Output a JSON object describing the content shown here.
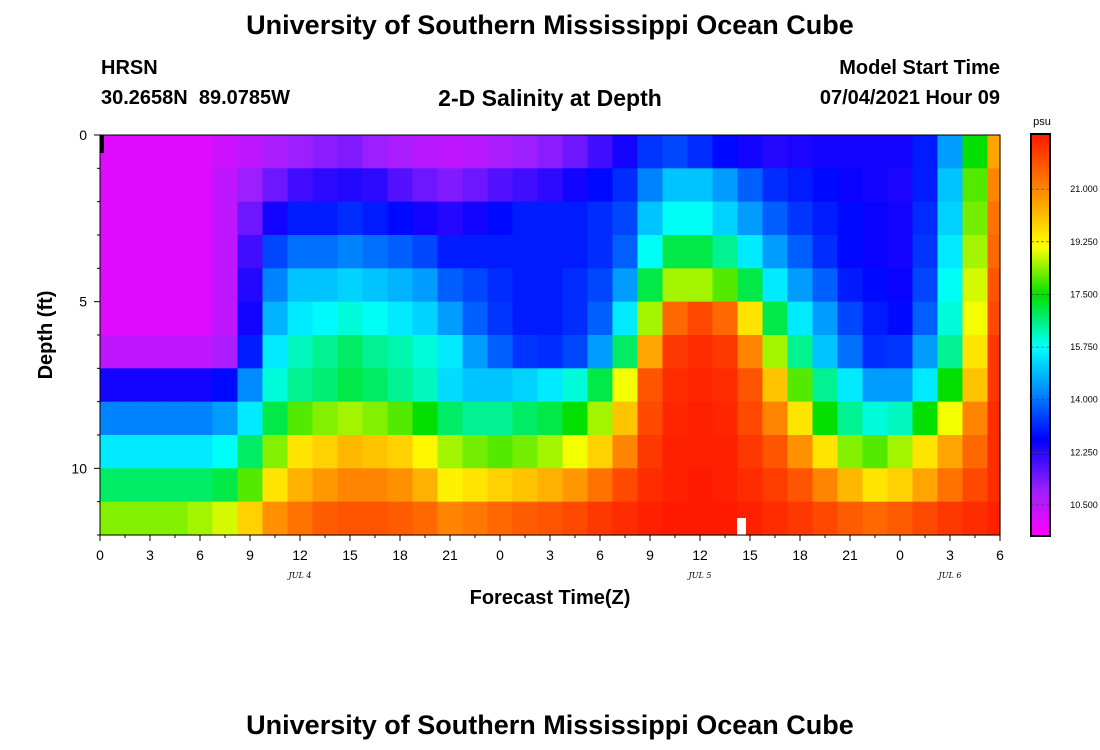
{
  "header": {
    "title": "University of Southern Mississippi Ocean Cube",
    "station": "HRSN",
    "coords": "30.2658N  89.0785W",
    "subtitle": "2-D Salinity at Depth",
    "model_label": "Model Start Time",
    "model_time": "07/04/2021 Hour 09"
  },
  "footer": {
    "title": "University of Southern Mississippi Ocean Cube"
  },
  "chart_data": {
    "type": "heatmap",
    "title": "2-D Salinity at Depth",
    "xlabel": "Forecast Time(Z)",
    "ylabel": "Depth (ft)",
    "x_hours": [
      0,
      54
    ],
    "y_depth_ft": [
      0,
      12
    ],
    "x_ticks": [
      "0",
      "3",
      "6",
      "9",
      "12",
      "15",
      "18",
      "21",
      "0",
      "3",
      "6",
      "9",
      "12",
      "15",
      "18",
      "21",
      "0",
      "3",
      "6"
    ],
    "y_ticks": [
      "0",
      "5",
      "10"
    ],
    "date_labels": [
      {
        "label": "JUL 4",
        "hour": 12
      },
      {
        "label": "JUL 5",
        "hour": 36
      },
      {
        "label": "JUL 6",
        "hour": 51
      }
    ],
    "colorbar": {
      "unit": "psu",
      "range": [
        9.5,
        22.8
      ],
      "ticks": [
        "10.500",
        "12.250",
        "14.000",
        "15.750",
        "17.500",
        "19.250",
        "21.000"
      ]
    },
    "time_hours": [
      0,
      1.5,
      3,
      4.5,
      6,
      7.5,
      9,
      10.5,
      12,
      13.5,
      15,
      16.5,
      18,
      19.5,
      21,
      22.5,
      24,
      25.5,
      27,
      28.5,
      30,
      31.5,
      33,
      34.5,
      36,
      37.5,
      39,
      40.5,
      42,
      43.5,
      45,
      46.5,
      48,
      49.5,
      51,
      52.5,
      54
    ],
    "depth_levels_ft": [
      0.5,
      1.5,
      2.5,
      3.5,
      4.5,
      5.5,
      6.5,
      7.5,
      8.5,
      9.5,
      10.5,
      11.5
    ],
    "salinity_psu": [
      [
        10.0,
        10.0,
        10.0,
        10.0,
        10.0,
        10.3,
        10.5,
        10.8,
        11.0,
        11.2,
        11.3,
        11.0,
        10.8,
        10.6,
        10.5,
        10.6,
        10.8,
        11.0,
        11.2,
        11.5,
        12.0,
        12.5,
        13.3,
        13.5,
        13.2,
        12.8,
        12.5,
        12.3,
        12.4,
        12.5,
        12.5,
        12.5,
        12.5,
        13.0,
        14.5,
        17.5,
        20.5
      ],
      [
        10.0,
        10.0,
        10.0,
        10.0,
        10.0,
        10.5,
        11.0,
        11.5,
        12.0,
        12.2,
        12.3,
        12.2,
        11.8,
        11.5,
        11.3,
        11.5,
        11.8,
        12.0,
        12.2,
        12.5,
        12.8,
        13.2,
        14.2,
        15.0,
        15.0,
        14.5,
        13.8,
        13.2,
        13.0,
        12.8,
        12.6,
        12.5,
        12.4,
        13.0,
        15.0,
        18.0,
        21.0
      ],
      [
        10.0,
        10.0,
        10.0,
        10.0,
        10.0,
        10.5,
        11.5,
        12.5,
        13.0,
        13.0,
        13.2,
        13.0,
        12.8,
        12.5,
        12.3,
        12.5,
        12.8,
        13.0,
        13.0,
        13.0,
        13.2,
        13.5,
        15.0,
        15.8,
        15.8,
        15.2,
        14.5,
        13.8,
        13.3,
        13.0,
        12.8,
        12.6,
        12.5,
        13.2,
        15.2,
        18.2,
        21.3
      ],
      [
        10.0,
        10.0,
        10.0,
        10.0,
        10.0,
        10.5,
        12.0,
        13.5,
        14.0,
        14.0,
        14.2,
        14.0,
        13.8,
        13.5,
        13.0,
        13.0,
        13.0,
        13.0,
        13.0,
        13.0,
        13.2,
        13.8,
        15.8,
        17.0,
        17.0,
        16.5,
        15.5,
        14.5,
        13.8,
        13.2,
        12.8,
        12.6,
        12.5,
        13.3,
        15.5,
        18.5,
        21.5
      ],
      [
        10.0,
        10.0,
        10.0,
        10.0,
        10.0,
        10.5,
        12.3,
        14.2,
        15.0,
        15.0,
        15.2,
        15.0,
        14.8,
        14.5,
        13.8,
        13.5,
        13.2,
        13.0,
        13.0,
        13.2,
        13.5,
        14.5,
        17.0,
        18.5,
        18.5,
        18.0,
        17.0,
        15.5,
        14.5,
        13.8,
        13.0,
        12.8,
        12.6,
        13.5,
        15.8,
        18.8,
        21.8
      ],
      [
        10.0,
        10.0,
        10.0,
        10.0,
        10.0,
        10.5,
        12.5,
        14.8,
        15.5,
        15.7,
        16.0,
        15.8,
        15.5,
        15.2,
        14.5,
        13.8,
        13.3,
        13.0,
        13.0,
        13.2,
        13.8,
        15.5,
        18.5,
        21.5,
        22.0,
        21.5,
        19.5,
        17.0,
        15.5,
        14.5,
        13.5,
        13.0,
        12.8,
        13.8,
        16.0,
        19.0,
        22.0
      ],
      [
        10.5,
        10.5,
        10.5,
        10.5,
        10.5,
        10.8,
        13.0,
        15.5,
        16.2,
        16.5,
        16.8,
        16.5,
        16.3,
        16.0,
        15.5,
        14.5,
        13.8,
        13.3,
        13.2,
        13.5,
        14.5,
        16.8,
        20.5,
        22.3,
        22.5,
        22.3,
        21.0,
        18.5,
        16.5,
        15.0,
        14.0,
        13.2,
        13.3,
        14.5,
        16.5,
        19.5,
        22.3
      ],
      [
        12.5,
        12.5,
        12.5,
        12.5,
        12.5,
        12.8,
        14.3,
        16.0,
        16.5,
        16.7,
        17.0,
        16.8,
        16.5,
        16.2,
        15.3,
        15.0,
        15.0,
        15.2,
        15.5,
        16.0,
        17.0,
        19.0,
        21.8,
        22.5,
        22.6,
        22.5,
        21.8,
        20.0,
        18.0,
        16.5,
        15.5,
        14.5,
        14.5,
        15.5,
        17.5,
        20.0,
        22.3
      ],
      [
        14.2,
        14.2,
        14.2,
        14.2,
        14.2,
        14.5,
        15.5,
        17.0,
        18.0,
        18.3,
        18.5,
        18.3,
        18.0,
        17.5,
        16.8,
        16.5,
        16.5,
        16.8,
        17.0,
        17.5,
        18.5,
        20.0,
        22.0,
        22.6,
        22.7,
        22.6,
        22.0,
        21.0,
        19.5,
        17.5,
        16.5,
        16.0,
        16.2,
        17.5,
        19.0,
        21.0,
        22.5
      ],
      [
        15.5,
        15.5,
        15.5,
        15.5,
        15.5,
        15.8,
        16.8,
        18.3,
        19.5,
        19.8,
        20.2,
        20.0,
        19.8,
        19.2,
        18.5,
        18.2,
        18.0,
        18.2,
        18.5,
        19.0,
        19.8,
        21.0,
        22.3,
        22.7,
        22.7,
        22.7,
        22.3,
        21.8,
        20.8,
        19.5,
        18.3,
        18.0,
        18.5,
        19.5,
        20.5,
        21.5,
        22.5
      ],
      [
        16.8,
        16.8,
        16.8,
        16.8,
        16.8,
        17.0,
        18.0,
        19.5,
        20.3,
        20.7,
        21.0,
        21.0,
        20.8,
        20.3,
        19.3,
        19.5,
        19.8,
        20.0,
        20.3,
        20.7,
        21.3,
        22.0,
        22.5,
        22.7,
        22.8,
        22.7,
        22.5,
        22.2,
        21.8,
        21.0,
        20.2,
        19.5,
        19.8,
        20.5,
        21.3,
        22.0,
        22.5
      ],
      [
        18.3,
        18.3,
        18.3,
        18.3,
        18.5,
        18.8,
        19.8,
        20.8,
        21.3,
        21.7,
        21.8,
        21.8,
        21.7,
        21.5,
        21.0,
        21.2,
        21.5,
        21.7,
        21.8,
        22.0,
        22.3,
        22.5,
        22.7,
        22.8,
        22.8,
        22.8,
        22.7,
        22.5,
        22.3,
        22.0,
        21.7,
        21.5,
        21.7,
        22.0,
        22.3,
        22.5,
        22.7
      ]
    ]
  }
}
